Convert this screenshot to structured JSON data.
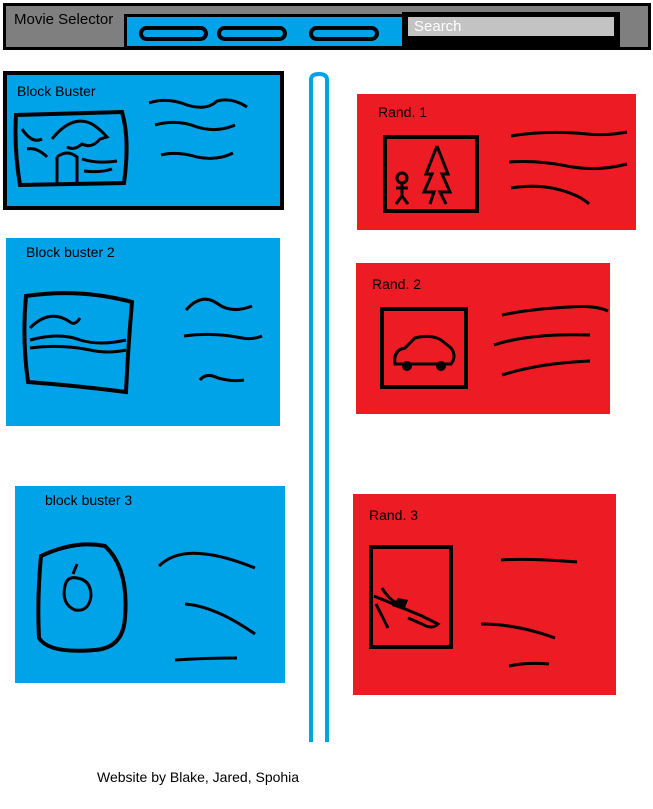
{
  "header": {
    "app_title": "Movie Selector",
    "search_placeholder": "Search",
    "nav_buttons": [
      "",
      "",
      ""
    ]
  },
  "colors": {
    "header_bg": "#7f7f7f",
    "nav_bg": "#00a2e8",
    "blockbuster_card": "#00a2e8",
    "random_card": "#ed1c24",
    "search_field": "#c3c3c3"
  },
  "blockbusters": [
    {
      "title": "Block Buster",
      "thumbnail_icon": "bird-sketch-icon"
    },
    {
      "title": "Block buster 2",
      "thumbnail_icon": "wave-sketch-icon"
    },
    {
      "title": "block buster 3",
      "thumbnail_icon": "apple-sketch-icon"
    }
  ],
  "random_picks": [
    {
      "title": "Rand. 1",
      "thumbnail_icon": "tree-person-sketch-icon"
    },
    {
      "title": "Rand. 2",
      "thumbnail_icon": "car-sketch-icon"
    },
    {
      "title": "Rand. 3",
      "thumbnail_icon": "crash-sketch-icon"
    }
  ],
  "footer": {
    "credit": "Website by Blake, Jared, Spohia"
  }
}
